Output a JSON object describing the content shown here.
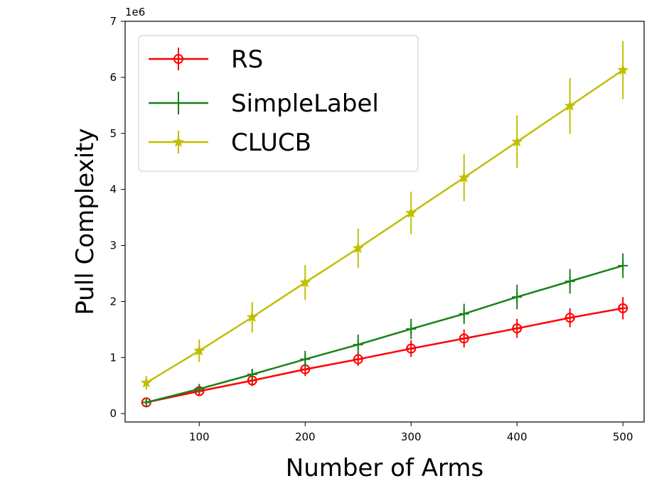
{
  "chart_data": {
    "type": "line",
    "xlabel": "Number of Arms",
    "ylabel": "Pull Complexity",
    "y_offset_label": "1e6",
    "xlim": [
      30,
      520
    ],
    "ylim": [
      -0.15,
      7
    ],
    "x_ticks": [
      100,
      200,
      300,
      400,
      500
    ],
    "x_tick_labels": [
      "100",
      "200",
      "300",
      "400",
      "500"
    ],
    "y_ticks": [
      0,
      1,
      2,
      3,
      4,
      5,
      6,
      7
    ],
    "y_tick_labels": [
      "0",
      "1",
      "2",
      "3",
      "4",
      "5",
      "6",
      "7"
    ],
    "y_units_multiplier": 1000000,
    "legend_position": "upper-left",
    "grid": false,
    "x": [
      50,
      100,
      150,
      200,
      250,
      300,
      350,
      400,
      450,
      500
    ],
    "series": [
      {
        "name": "RS",
        "color": "#ff0000",
        "marker": "circle",
        "values": [
          0.2,
          0.4,
          0.59,
          0.79,
          0.97,
          1.16,
          1.34,
          1.52,
          1.71,
          1.88
        ],
        "errors": [
          0.05,
          0.08,
          0.1,
          0.12,
          0.12,
          0.15,
          0.16,
          0.17,
          0.17,
          0.2
        ]
      },
      {
        "name": "SimpleLabel",
        "color": "#1a801a",
        "marker": "plus",
        "values": [
          0.2,
          0.44,
          0.7,
          0.97,
          1.23,
          1.51,
          1.78,
          2.08,
          2.36,
          2.64
        ],
        "errors": [
          0.05,
          0.08,
          0.1,
          0.15,
          0.18,
          0.18,
          0.18,
          0.22,
          0.22,
          0.22
        ]
      },
      {
        "name": "CLUCB",
        "color": "#bfbf00",
        "marker": "star",
        "values": [
          0.55,
          1.12,
          1.72,
          2.34,
          2.95,
          3.58,
          4.21,
          4.85,
          5.49,
          6.13
        ],
        "errors": [
          0.12,
          0.2,
          0.27,
          0.31,
          0.35,
          0.38,
          0.42,
          0.47,
          0.5,
          0.52
        ]
      }
    ]
  }
}
